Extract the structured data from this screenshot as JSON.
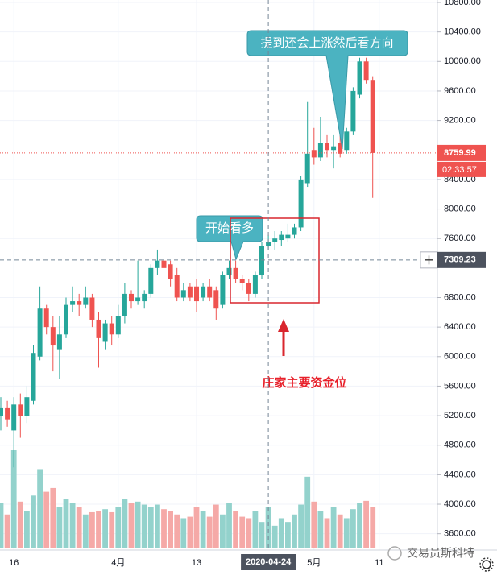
{
  "chart_data": {
    "type": "candlestick",
    "categories": [
      null,
      null,
      "16",
      null,
      null,
      null,
      null,
      null,
      null,
      null,
      null,
      null,
      null,
      null,
      null,
      null,
      null,
      null,
      "4月",
      null,
      null,
      null,
      null,
      null,
      null,
      null,
      null,
      null,
      null,
      null,
      "13",
      null,
      null,
      null,
      null,
      null,
      null,
      null,
      null,
      null,
      null,
      "2020-04-24",
      null,
      null,
      null,
      null,
      null,
      null,
      "5月",
      null,
      null,
      null,
      null,
      null,
      null,
      null,
      null,
      null,
      "11"
    ],
    "open": [
      5200,
      5300,
      5000,
      5350,
      5200,
      5400,
      6000,
      6650,
      6400,
      6100,
      6300,
      6700,
      6750,
      6700,
      6800,
      6500,
      6200,
      6450,
      6300,
      6550,
      6850,
      6750,
      6750,
      6850,
      7200,
      7300,
      7250,
      7100,
      6800,
      6950,
      6950,
      6800,
      6950,
      6900,
      6700,
      7100,
      7200,
      7050,
      7000,
      6850,
      7100,
      7500,
      7550,
      7580,
      7600,
      7650,
      7750,
      8350,
      8800,
      8700,
      8900,
      8800,
      8900,
      8800,
      9050,
      9550,
      10000,
      9750,
      null
    ],
    "high": [
      5450,
      5400,
      5450,
      5500,
      5600,
      6150,
      6950,
      6700,
      6550,
      6550,
      6800,
      6950,
      6850,
      6950,
      6850,
      6600,
      6500,
      6550,
      6700,
      7000,
      6900,
      7300,
      6900,
      7250,
      7450,
      7450,
      7300,
      7200,
      7000,
      7000,
      7050,
      7000,
      7050,
      6950,
      7150,
      7300,
      7300,
      7100,
      7050,
      7150,
      7550,
      7650,
      7700,
      7700,
      7800,
      7800,
      8450,
      9450,
      9100,
      9250,
      9000,
      9000,
      9200,
      9100,
      9650,
      10050,
      10050,
      9800,
      null
    ],
    "low": [
      5000,
      5050,
      4500,
      4900,
      5100,
      5350,
      5950,
      6300,
      5800,
      5700,
      6250,
      6600,
      6550,
      6650,
      6400,
      5850,
      6100,
      6150,
      6250,
      6450,
      6650,
      6700,
      6650,
      6800,
      7100,
      7150,
      6950,
      6750,
      6750,
      6750,
      6600,
      6750,
      6750,
      6500,
      6650,
      7050,
      7000,
      6900,
      6750,
      6800,
      7050,
      7450,
      7450,
      7500,
      7550,
      7600,
      7700,
      8300,
      8600,
      8650,
      8700,
      8550,
      8700,
      8750,
      9000,
      9500,
      9700,
      8150,
      null
    ],
    "close": [
      5300,
      5150,
      5350,
      5200,
      5450,
      6050,
      6650,
      6400,
      6150,
      6300,
      6700,
      6750,
      6700,
      6800,
      6500,
      6250,
      6450,
      6300,
      6550,
      6850,
      6750,
      6800,
      6850,
      7200,
      7300,
      7200,
      7050,
      6800,
      6900,
      6800,
      6750,
      6950,
      6800,
      6650,
      7100,
      7200,
      7050,
      7000,
      6850,
      7100,
      7500,
      7550,
      7600,
      7650,
      7650,
      7750,
      8400,
      8750,
      8700,
      8900,
      8800,
      8850,
      8750,
      9050,
      9600,
      10000,
      9750,
      8759.99,
      null
    ],
    "volume": [
      60,
      45,
      130,
      62,
      50,
      70,
      105,
      75,
      80,
      55,
      65,
      60,
      55,
      45,
      48,
      50,
      52,
      48,
      55,
      65,
      60,
      62,
      58,
      55,
      58,
      52,
      50,
      45,
      40,
      42,
      55,
      50,
      42,
      58,
      45,
      60,
      50,
      42,
      40,
      50,
      35,
      55,
      30,
      40,
      35,
      45,
      58,
      95,
      62,
      50,
      40,
      55,
      45,
      40,
      52,
      60,
      63,
      55,
      null
    ],
    "up_color": "#26a69a",
    "down_color": "#ef5350",
    "up_volume_color": "#93d2cc",
    "down_volume_color": "#f5a9a7",
    "ylim": [
      3400,
      10800
    ],
    "yticks": [
      {
        "value": 10800,
        "label": "10800.00"
      },
      {
        "value": 10400,
        "label": "10400.00"
      },
      {
        "value": 10000,
        "label": "10000.00"
      },
      {
        "value": 9600,
        "label": "9600.00"
      },
      {
        "value": 9200,
        "label": "9200.00"
      },
      {
        "value": 8400,
        "label": "8400.00"
      },
      {
        "value": 8000,
        "label": "8000.00"
      },
      {
        "value": 7600,
        "label": "7600.00"
      },
      {
        "value": 6800,
        "label": "6800.00"
      },
      {
        "value": 6400,
        "label": "6400.00"
      },
      {
        "value": 6000,
        "label": "6000.00"
      },
      {
        "value": 5600,
        "label": "5600.00"
      },
      {
        "value": 5200,
        "label": "5200.00"
      },
      {
        "value": 4800,
        "label": "4800.00"
      },
      {
        "value": 4400,
        "label": "4400.00"
      },
      {
        "value": 4000,
        "label": "4000.00"
      },
      {
        "value": 3600,
        "label": "3600.00"
      }
    ],
    "grid": true,
    "countdown": "02:33:57",
    "crosshair": {
      "price": 7309.23,
      "index": 41
    },
    "annotations": [
      "提到还会上涨然后看方向",
      "开始看多",
      "庄家主要资金位"
    ],
    "watermark": "交易员斯科特"
  }
}
